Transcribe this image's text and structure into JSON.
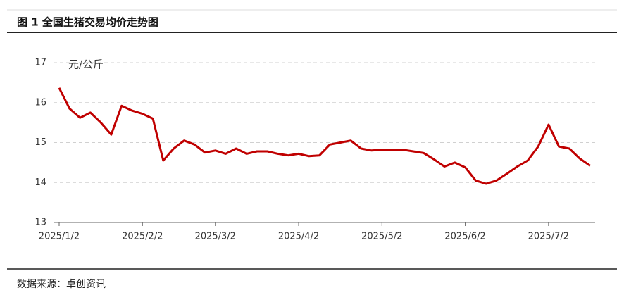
{
  "chart_data": {
    "type": "line",
    "title": "图 1   全国生猪交易均价走势图",
    "y_label": "元/公斤",
    "source": "数据来源：卓创资讯",
    "categories": [
      "2025/1/2",
      null,
      null,
      null,
      null,
      null,
      null,
      null,
      "2025/2/2",
      null,
      null,
      null,
      null,
      null,
      null,
      "2025/3/2",
      null,
      null,
      null,
      null,
      null,
      null,
      null,
      "2025/4/2",
      null,
      null,
      null,
      null,
      null,
      null,
      null,
      "2025/5/2",
      null,
      null,
      null,
      null,
      null,
      null,
      null,
      "2025/6/2",
      null,
      null,
      null,
      null,
      null,
      null,
      null,
      "2025/7/2",
      null,
      null,
      null,
      null
    ],
    "series": [
      {
        "name": "全国生猪交易均价",
        "color": "#c00000",
        "values": [
          16.37,
          15.85,
          15.62,
          15.75,
          15.5,
          15.2,
          15.92,
          15.8,
          15.72,
          15.6,
          14.55,
          14.85,
          15.05,
          14.95,
          14.75,
          14.8,
          14.72,
          14.85,
          14.72,
          14.78,
          14.78,
          14.72,
          14.68,
          14.72,
          14.66,
          14.68,
          14.95,
          15.0,
          15.05,
          14.85,
          14.8,
          14.82,
          14.82,
          14.82,
          14.78,
          14.74,
          14.58,
          14.4,
          14.5,
          14.38,
          14.05,
          13.97,
          14.05,
          14.22,
          14.4,
          14.55,
          14.9,
          15.45,
          14.9,
          14.85,
          14.6,
          14.42
        ]
      }
    ],
    "ylim": [
      13,
      17
    ],
    "yticks": [
      13,
      14,
      15,
      16,
      17
    ],
    "grid": true
  }
}
